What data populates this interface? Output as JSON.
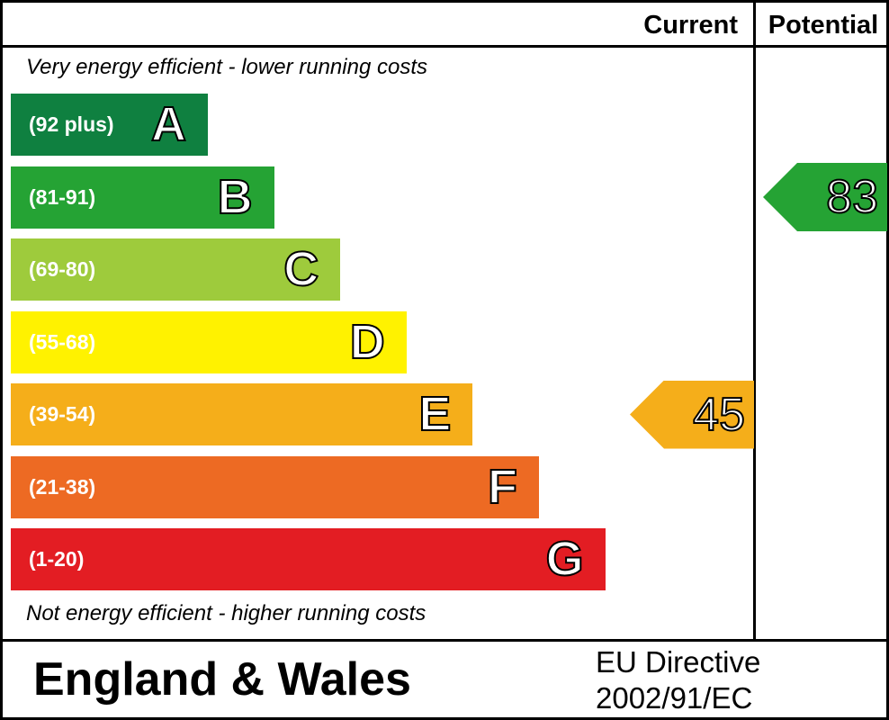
{
  "header": {
    "current_label": "Current",
    "potential_label": "Potential"
  },
  "notes": {
    "top": "Very energy efficient - lower running costs",
    "bottom": "Not energy efficient - higher running costs"
  },
  "footer": {
    "region": "England & Wales",
    "directive_line1": "EU Directive",
    "directive_line2": "2002/91/EC"
  },
  "chart_data": {
    "type": "bar",
    "title": "",
    "bands": [
      {
        "letter": "A",
        "range": "(92 plus)",
        "min": 92,
        "max": null,
        "color": "#0f8040"
      },
      {
        "letter": "B",
        "range": "(81-91)",
        "min": 81,
        "max": 91,
        "color": "#25a334"
      },
      {
        "letter": "C",
        "range": "(69-80)",
        "min": 69,
        "max": 80,
        "color": "#9ecb3c"
      },
      {
        "letter": "D",
        "range": "(55-68)",
        "min": 55,
        "max": 68,
        "color": "#fff200"
      },
      {
        "letter": "E",
        "range": "(39-54)",
        "min": 39,
        "max": 54,
        "color": "#f5ae1a"
      },
      {
        "letter": "F",
        "range": "(21-38)",
        "min": 21,
        "max": 38,
        "color": "#ed6a23"
      },
      {
        "letter": "G",
        "range": "(1-20)",
        "min": 1,
        "max": 20,
        "color": "#e31d23"
      }
    ],
    "ratings": {
      "current": {
        "value": 45,
        "band": "E",
        "color": "#f5ae1a"
      },
      "potential": {
        "value": 83,
        "band": "B",
        "color": "#25a334"
      }
    }
  }
}
